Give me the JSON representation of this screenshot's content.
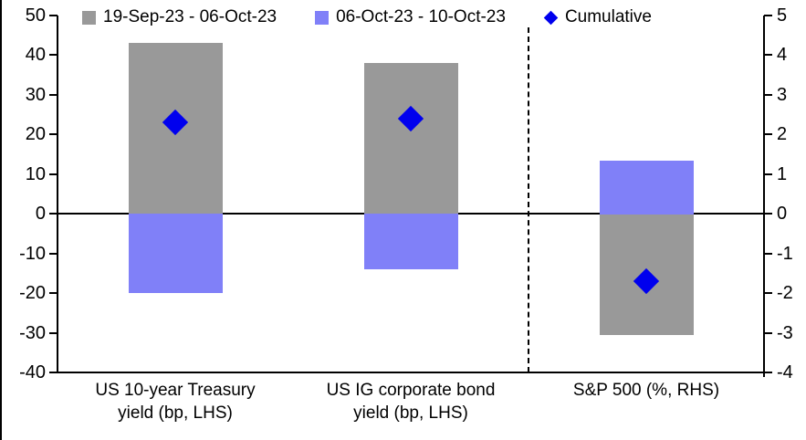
{
  "legend": [
    {
      "label": "19-Sep-23 - 06-Oct-23",
      "marker": "square",
      "color": "#999999"
    },
    {
      "label": "06-Oct-23 - 10-Oct-23",
      "marker": "square",
      "color": "#8080F8"
    },
    {
      "label": "Cumulative",
      "marker": "diamond",
      "color": "#0000EE"
    }
  ],
  "chart_data": {
    "type": "bar",
    "title": "",
    "categories": [
      "US 10-year Treasury yield (bp, LHS)",
      "US IG corporate bond yield (bp, LHS)",
      "S&P 500 (%, RHS)"
    ],
    "category_lines": [
      [
        "US 10-year Treasury",
        "yield (bp, LHS)"
      ],
      [
        "US IG corporate bond",
        "yield (bp, LHS)"
      ],
      [
        "S&P 500 (%, RHS)"
      ]
    ],
    "category_axis": [
      "LHS",
      "LHS",
      "RHS"
    ],
    "series": [
      {
        "name": "19-Sep-23 - 06-Oct-23",
        "type": "bar",
        "color": "#999999",
        "values": [
          43,
          38,
          -3.05
        ]
      },
      {
        "name": "06-Oct-23 - 10-Oct-23",
        "type": "bar",
        "color": "#8080F8",
        "values": [
          -20,
          -14,
          1.35
        ]
      },
      {
        "name": "Cumulative",
        "type": "marker",
        "color": "#0000EE",
        "values": [
          23,
          24,
          -1.7
        ]
      }
    ],
    "left_axis": {
      "min": -40,
      "max": 50,
      "step": 10,
      "ticks": [
        "50",
        "40",
        "30",
        "20",
        "10",
        "0",
        "-10",
        "-20",
        "-30",
        "-40"
      ]
    },
    "right_axis": {
      "min": -4,
      "max": 5,
      "step": 1,
      "ticks": [
        "5",
        "4",
        "3",
        "2",
        "1",
        "0",
        "-1",
        "-2",
        "-3",
        "-4"
      ]
    },
    "separator_after_category": 2,
    "grid": false,
    "legend_position": "top"
  }
}
